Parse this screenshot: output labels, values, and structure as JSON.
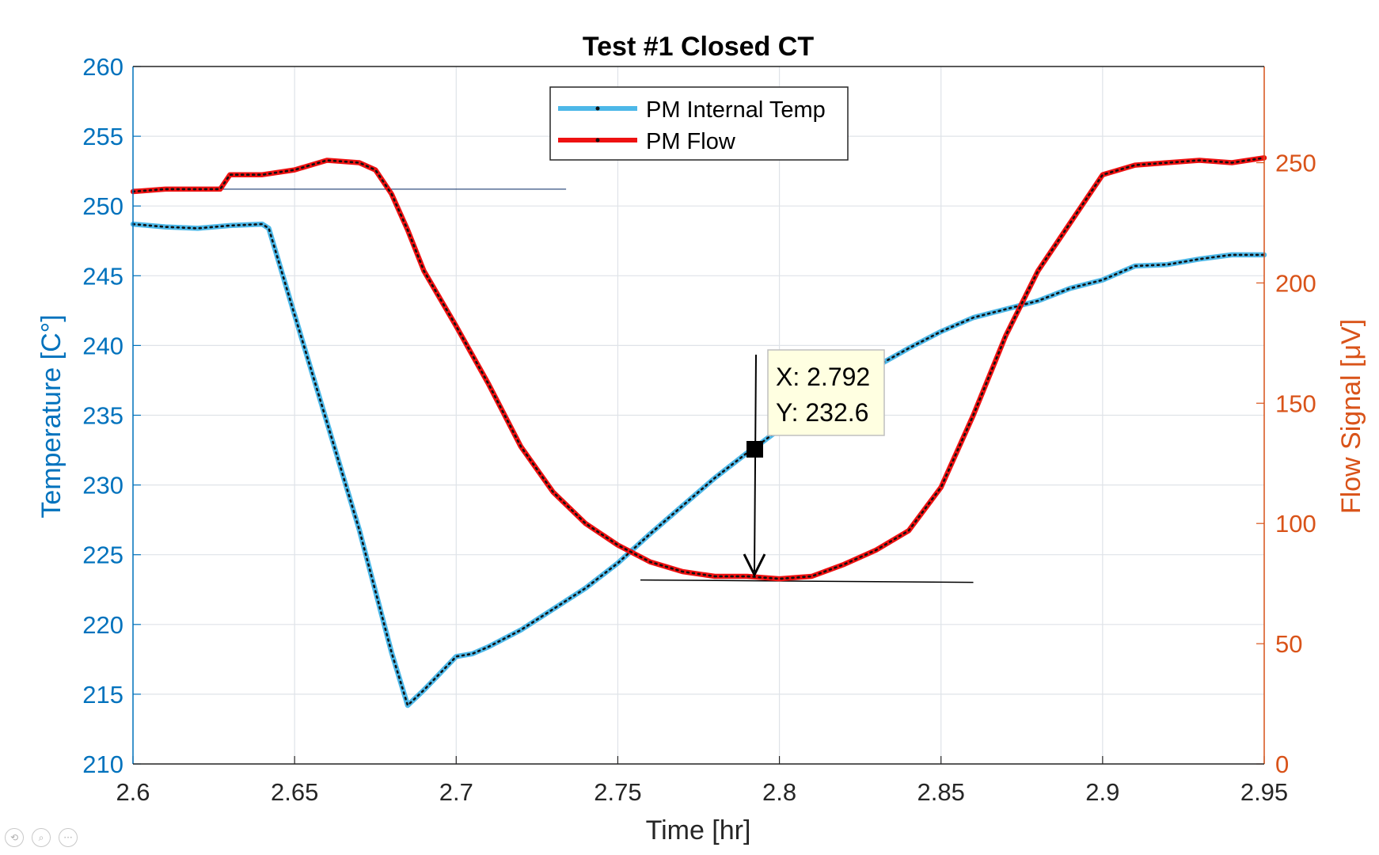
{
  "chart_data": {
    "type": "line",
    "title": "Test #1 Closed CT",
    "xlabel": "Time [hr]",
    "ylabel_left": "Temperature [C°]",
    "ylabel_right": "Flow Signal [μV]",
    "xlim": [
      2.6,
      2.95
    ],
    "ylim_left": [
      210,
      260
    ],
    "ylim_right": [
      0,
      290
    ],
    "x_ticks": [
      "2.6",
      "2.65",
      "2.7",
      "2.75",
      "2.8",
      "2.85",
      "2.9",
      "2.95"
    ],
    "y_left_ticks": [
      "210",
      "215",
      "220",
      "225",
      "230",
      "235",
      "240",
      "245",
      "250",
      "255",
      "260"
    ],
    "y_right_ticks": [
      "0",
      "50",
      "100",
      "150",
      "200",
      "250"
    ],
    "grid": true,
    "legend_position": "top-center",
    "colors": {
      "temp": "#4db8e8",
      "flow": "#ee1111",
      "left_axis": "#0072bd",
      "right_axis": "#d95319"
    },
    "series": [
      {
        "name": "PM Internal Temp",
        "axis": "left",
        "x": [
          2.6,
          2.61,
          2.62,
          2.63,
          2.64,
          2.642,
          2.65,
          2.66,
          2.67,
          2.68,
          2.685,
          2.69,
          2.695,
          2.7,
          2.705,
          2.71,
          2.72,
          2.73,
          2.74,
          2.75,
          2.76,
          2.77,
          2.78,
          2.79,
          2.792,
          2.8,
          2.81,
          2.82,
          2.83,
          2.84,
          2.85,
          2.86,
          2.87,
          2.88,
          2.89,
          2.9,
          2.91,
          2.92,
          2.93,
          2.94,
          2.95
        ],
        "y": [
          248.7,
          248.5,
          248.4,
          248.6,
          248.7,
          248.4,
          242.2,
          234.5,
          226.8,
          218.0,
          214.2,
          215.3,
          216.5,
          217.7,
          217.9,
          218.4,
          219.6,
          221.1,
          222.6,
          224.4,
          226.5,
          228.5,
          230.5,
          232.3,
          232.6,
          234.0,
          235.8,
          237.2,
          238.5,
          239.8,
          241.0,
          242.0,
          242.6,
          243.2,
          244.1,
          244.7,
          245.7,
          245.8,
          246.2,
          246.5,
          246.5
        ]
      },
      {
        "name": "PM Flow",
        "axis": "right",
        "x": [
          2.6,
          2.61,
          2.62,
          2.627,
          2.63,
          2.64,
          2.65,
          2.66,
          2.67,
          2.675,
          2.68,
          2.685,
          2.69,
          2.7,
          2.71,
          2.72,
          2.73,
          2.74,
          2.75,
          2.76,
          2.77,
          2.78,
          2.79,
          2.8,
          2.81,
          2.82,
          2.83,
          2.84,
          2.85,
          2.86,
          2.87,
          2.88,
          2.89,
          2.9,
          2.91,
          2.92,
          2.93,
          2.94,
          2.95
        ],
        "y": [
          238,
          239,
          239,
          239,
          245,
          245,
          247,
          251,
          250,
          247,
          237,
          222,
          205,
          182,
          158,
          132,
          113,
          100,
          91,
          84,
          80,
          78,
          78,
          77,
          78,
          83,
          89,
          97,
          115,
          145,
          178,
          205,
          225,
          245,
          249,
          250,
          251,
          250,
          252
        ]
      }
    ],
    "annotation": {
      "x_label": "X: 2.792",
      "y_label": "Y: 232.6",
      "x": 2.792,
      "y": 232.6
    }
  }
}
